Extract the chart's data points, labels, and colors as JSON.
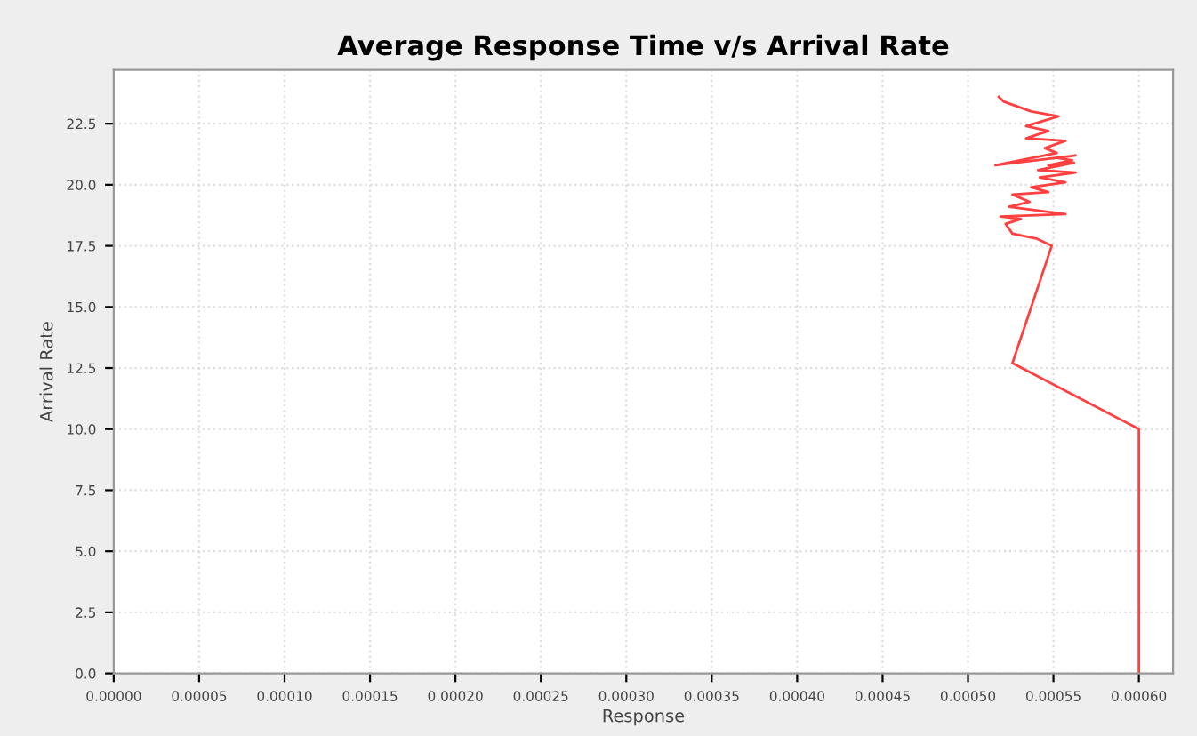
{
  "chart_data": {
    "type": "line",
    "title": "Average Response Time v/s Arrival Rate",
    "xlabel": "Response",
    "ylabel": "Arrival Rate",
    "x": [
      0.0006,
      0.0006,
      0.000526,
      0.000549,
      0.00054,
      0.000526,
      0.000522,
      0.000531,
      0.000519,
      0.000557,
      0.000524,
      0.000536,
      0.000526,
      0.000547,
      0.000537,
      0.000557,
      0.000542,
      0.000563,
      0.000541,
      0.000562,
      0.000547,
      0.000561,
      0.000552,
      0.000563,
      0.000516,
      0.000552,
      0.000545,
      0.000557,
      0.000534,
      0.000547,
      0.000534,
      0.000553,
      0.000537,
      0.000521,
      0.000518
    ],
    "series": [
      {
        "color": "#ff4040",
        "values": [
          0,
          10.0,
          12.7,
          17.5,
          17.8,
          18.0,
          18.4,
          18.6,
          18.7,
          18.8,
          19.1,
          19.3,
          19.6,
          19.7,
          19.9,
          20.1,
          20.3,
          20.5,
          20.6,
          20.9,
          20.8,
          21.0,
          21.1,
          21.2,
          20.8,
          21.3,
          21.5,
          21.8,
          21.9,
          22.2,
          22.4,
          22.8,
          23.0,
          23.4,
          23.6
        ]
      }
    ],
    "xlim": [
      0,
      0.00062
    ],
    "ylim": [
      0,
      24.7
    ],
    "xticks": [
      {
        "value": 0,
        "label": "0.00000"
      },
      {
        "value": 5e-05,
        "label": "0.00005"
      },
      {
        "value": 0.0001,
        "label": "0.00010"
      },
      {
        "value": 0.00015,
        "label": "0.00015"
      },
      {
        "value": 0.0002,
        "label": "0.00020"
      },
      {
        "value": 0.00025,
        "label": "0.00025"
      },
      {
        "value": 0.0003,
        "label": "0.00030"
      },
      {
        "value": 0.00035,
        "label": "0.00035"
      },
      {
        "value": 0.0004,
        "label": "0.00040"
      },
      {
        "value": 0.00045,
        "label": "0.00045"
      },
      {
        "value": 0.0005,
        "label": "0.00050"
      },
      {
        "value": 0.00055,
        "label": "0.00055"
      },
      {
        "value": 0.0006,
        "label": "0.00060"
      }
    ],
    "yticks": [
      {
        "value": 0,
        "label": "0.0"
      },
      {
        "value": 2.5,
        "label": "2.5"
      },
      {
        "value": 5,
        "label": "5.0"
      },
      {
        "value": 7.5,
        "label": "7.5"
      },
      {
        "value": 10,
        "label": "10.0"
      },
      {
        "value": 12.5,
        "label": "12.5"
      },
      {
        "value": 15,
        "label": "15.0"
      },
      {
        "value": 17.5,
        "label": "17.5"
      },
      {
        "value": 20,
        "label": "20.0"
      },
      {
        "value": 22.5,
        "label": "22.5"
      }
    ],
    "grid": true,
    "marker": "none",
    "line_style": "solid"
  }
}
